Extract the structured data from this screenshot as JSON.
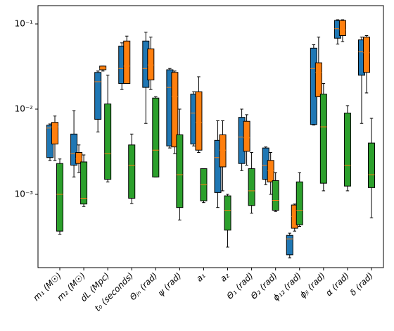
{
  "chart_data": {
    "type": "box",
    "log_scale_y": true,
    "median_color": "#ff7f0e",
    "categories": [
      "m₁ (M☉)",
      "m₂ (M☉)",
      "dL (Mpc)",
      "t₀ (seconds)",
      "Θⱼₙ (rad)",
      "ψ (rad)",
      "a₁",
      "a₂",
      "Θ₁ (rad)",
      "Θ₂ (rad)",
      "ϕ₁₂ (rad)",
      "ϕⱼₗ (rad)",
      "α (rad)",
      "δ (rad)"
    ],
    "ylim": [
      0.000138,
      0.164
    ],
    "yticks": [
      {
        "value": 0.001,
        "label": "10⁻³"
      },
      {
        "value": 0.01,
        "label": "10⁻²"
      },
      {
        "value": 0.1,
        "label": "10⁻¹"
      }
    ],
    "series": [
      {
        "color": "#1f77b4",
        "whisker_low": [
          0.0025,
          0.0016,
          0.0054,
          0.017,
          0.0068,
          0.0035,
          0.0037,
          0.0007,
          0.0019,
          0.0013,
          0.00018,
          0.0065,
          0.058,
          0.0068
        ],
        "q1": [
          0.0027,
          0.0022,
          0.0076,
          0.02,
          0.018,
          0.0037,
          0.0039,
          0.00105,
          0.0023,
          0.0015,
          0.000195,
          0.0066,
          0.068,
          0.025
        ],
        "median": [
          0.006,
          0.003,
          0.021,
          0.03,
          0.03,
          0.018,
          0.009,
          0.0027,
          0.0047,
          0.0022,
          0.0003,
          0.03,
          0.088,
          0.047
        ],
        "q3": [
          0.0065,
          0.0051,
          0.027,
          0.055,
          0.063,
          0.029,
          0.015,
          0.0043,
          0.008,
          0.0035,
          0.00033,
          0.052,
          0.11,
          0.065
        ],
        "whisker_high": [
          0.0067,
          0.0096,
          0.028,
          0.06,
          0.08,
          0.03,
          0.016,
          0.0073,
          0.01,
          0.0036,
          0.00035,
          0.057,
          0.112,
          0.07
        ]
      },
      {
        "color": "#ff7f0e",
        "whisker_low": [
          0.0025,
          0.0018,
          0.028,
          0.02,
          0.017,
          0.003,
          0.0031,
          0.0011,
          0.0022,
          0.001,
          0.00037,
          0.014,
          0.062,
          0.0155
        ],
        "q1": [
          0.0039,
          0.0023,
          0.029,
          0.02,
          0.022,
          0.0036,
          0.0033,
          0.0021,
          0.0032,
          0.0014,
          0.0004,
          0.014,
          0.073,
          0.027
        ],
        "median": [
          0.0062,
          0.0026,
          0.03,
          0.032,
          0.033,
          0.014,
          0.007,
          0.0033,
          0.0046,
          0.0019,
          0.00055,
          0.027,
          0.085,
          0.046
        ],
        "q3": [
          0.007,
          0.0031,
          0.032,
          0.063,
          0.051,
          0.027,
          0.016,
          0.005,
          0.0072,
          0.0025,
          0.00075,
          0.035,
          0.11,
          0.07
        ],
        "whisker_high": [
          0.0083,
          0.0038,
          0.032,
          0.072,
          0.07,
          0.028,
          0.024,
          0.0073,
          0.0086,
          0.0031,
          0.00077,
          0.07,
          0.112,
          0.073
        ]
      },
      {
        "color": "#2ca02c",
        "whisker_low": [
          0.00034,
          0.00072,
          0.0014,
          0.00078,
          0.0016,
          0.0005,
          0.0008,
          0.00024,
          0.0006,
          0.00063,
          0.00042,
          0.0011,
          0.0011,
          0.00053
        ],
        "q1": [
          0.00037,
          0.00077,
          0.0015,
          0.0009,
          0.0016,
          0.0007,
          0.00084,
          0.00038,
          0.00074,
          0.00065,
          0.00044,
          0.00135,
          0.00125,
          0.0012
        ],
        "median": [
          0.001,
          0.0009,
          0.003,
          0.0022,
          0.0033,
          0.0017,
          0.0013,
          0.00065,
          0.0011,
          0.00085,
          0.00065,
          0.0062,
          0.0022,
          0.0017
        ],
        "q3": [
          0.0023,
          0.0024,
          0.0115,
          0.0038,
          0.0135,
          0.005,
          0.002,
          0.00096,
          0.002,
          0.00145,
          0.0014,
          0.015,
          0.009,
          0.004
        ],
        "whisker_high": [
          0.0026,
          0.0029,
          0.025,
          0.0051,
          0.014,
          0.01,
          0.002,
          0.001,
          0.0031,
          0.0018,
          0.0018,
          0.02,
          0.011,
          0.0078
        ]
      }
    ]
  }
}
